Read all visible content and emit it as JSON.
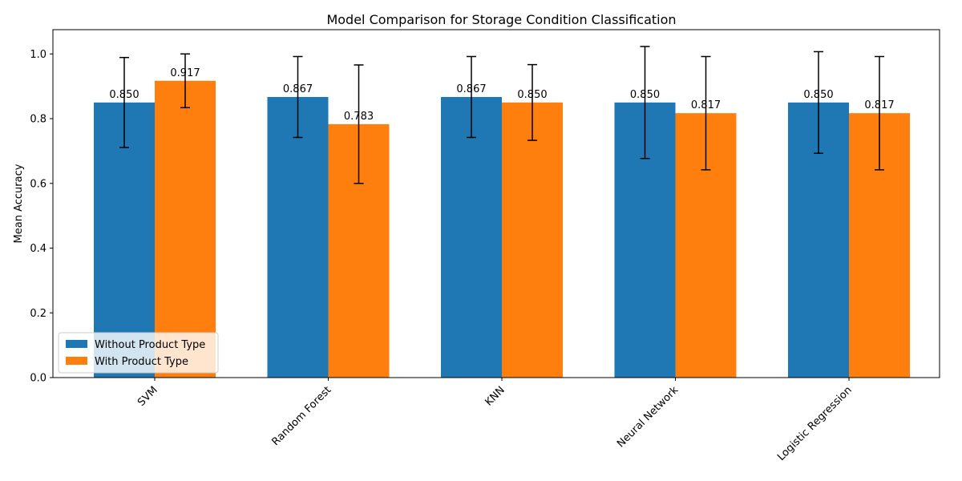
{
  "chart_data": {
    "type": "bar",
    "title": "Model Comparison for Storage Condition Classification",
    "xlabel": "",
    "ylabel": "Mean Accuracy",
    "categories": [
      "SVM",
      "Random Forest",
      "KNN",
      "Neural Network",
      "Logistic Regression"
    ],
    "series": [
      {
        "name": "Without Product Type",
        "color": "#1f77b4",
        "values": [
          0.85,
          0.867,
          0.867,
          0.85,
          0.85
        ],
        "errors": [
          0.139,
          0.125,
          0.125,
          0.173,
          0.157
        ],
        "labels": [
          "0.850",
          "0.867",
          "0.867",
          "0.850",
          "0.850"
        ]
      },
      {
        "name": "With Product Type",
        "color": "#ff7f0e",
        "values": [
          0.917,
          0.783,
          0.85,
          0.817,
          0.817
        ],
        "errors": [
          0.083,
          0.183,
          0.117,
          0.175,
          0.175
        ],
        "labels": [
          "0.917",
          "0.783",
          "0.850",
          "0.817",
          "0.817"
        ]
      }
    ],
    "ylim": [
      0,
      1.075
    ],
    "yticks": [
      "0.0",
      "0.2",
      "0.4",
      "0.6",
      "0.8",
      "1.0"
    ],
    "grid": false,
    "legend_position": "lower-left"
  }
}
